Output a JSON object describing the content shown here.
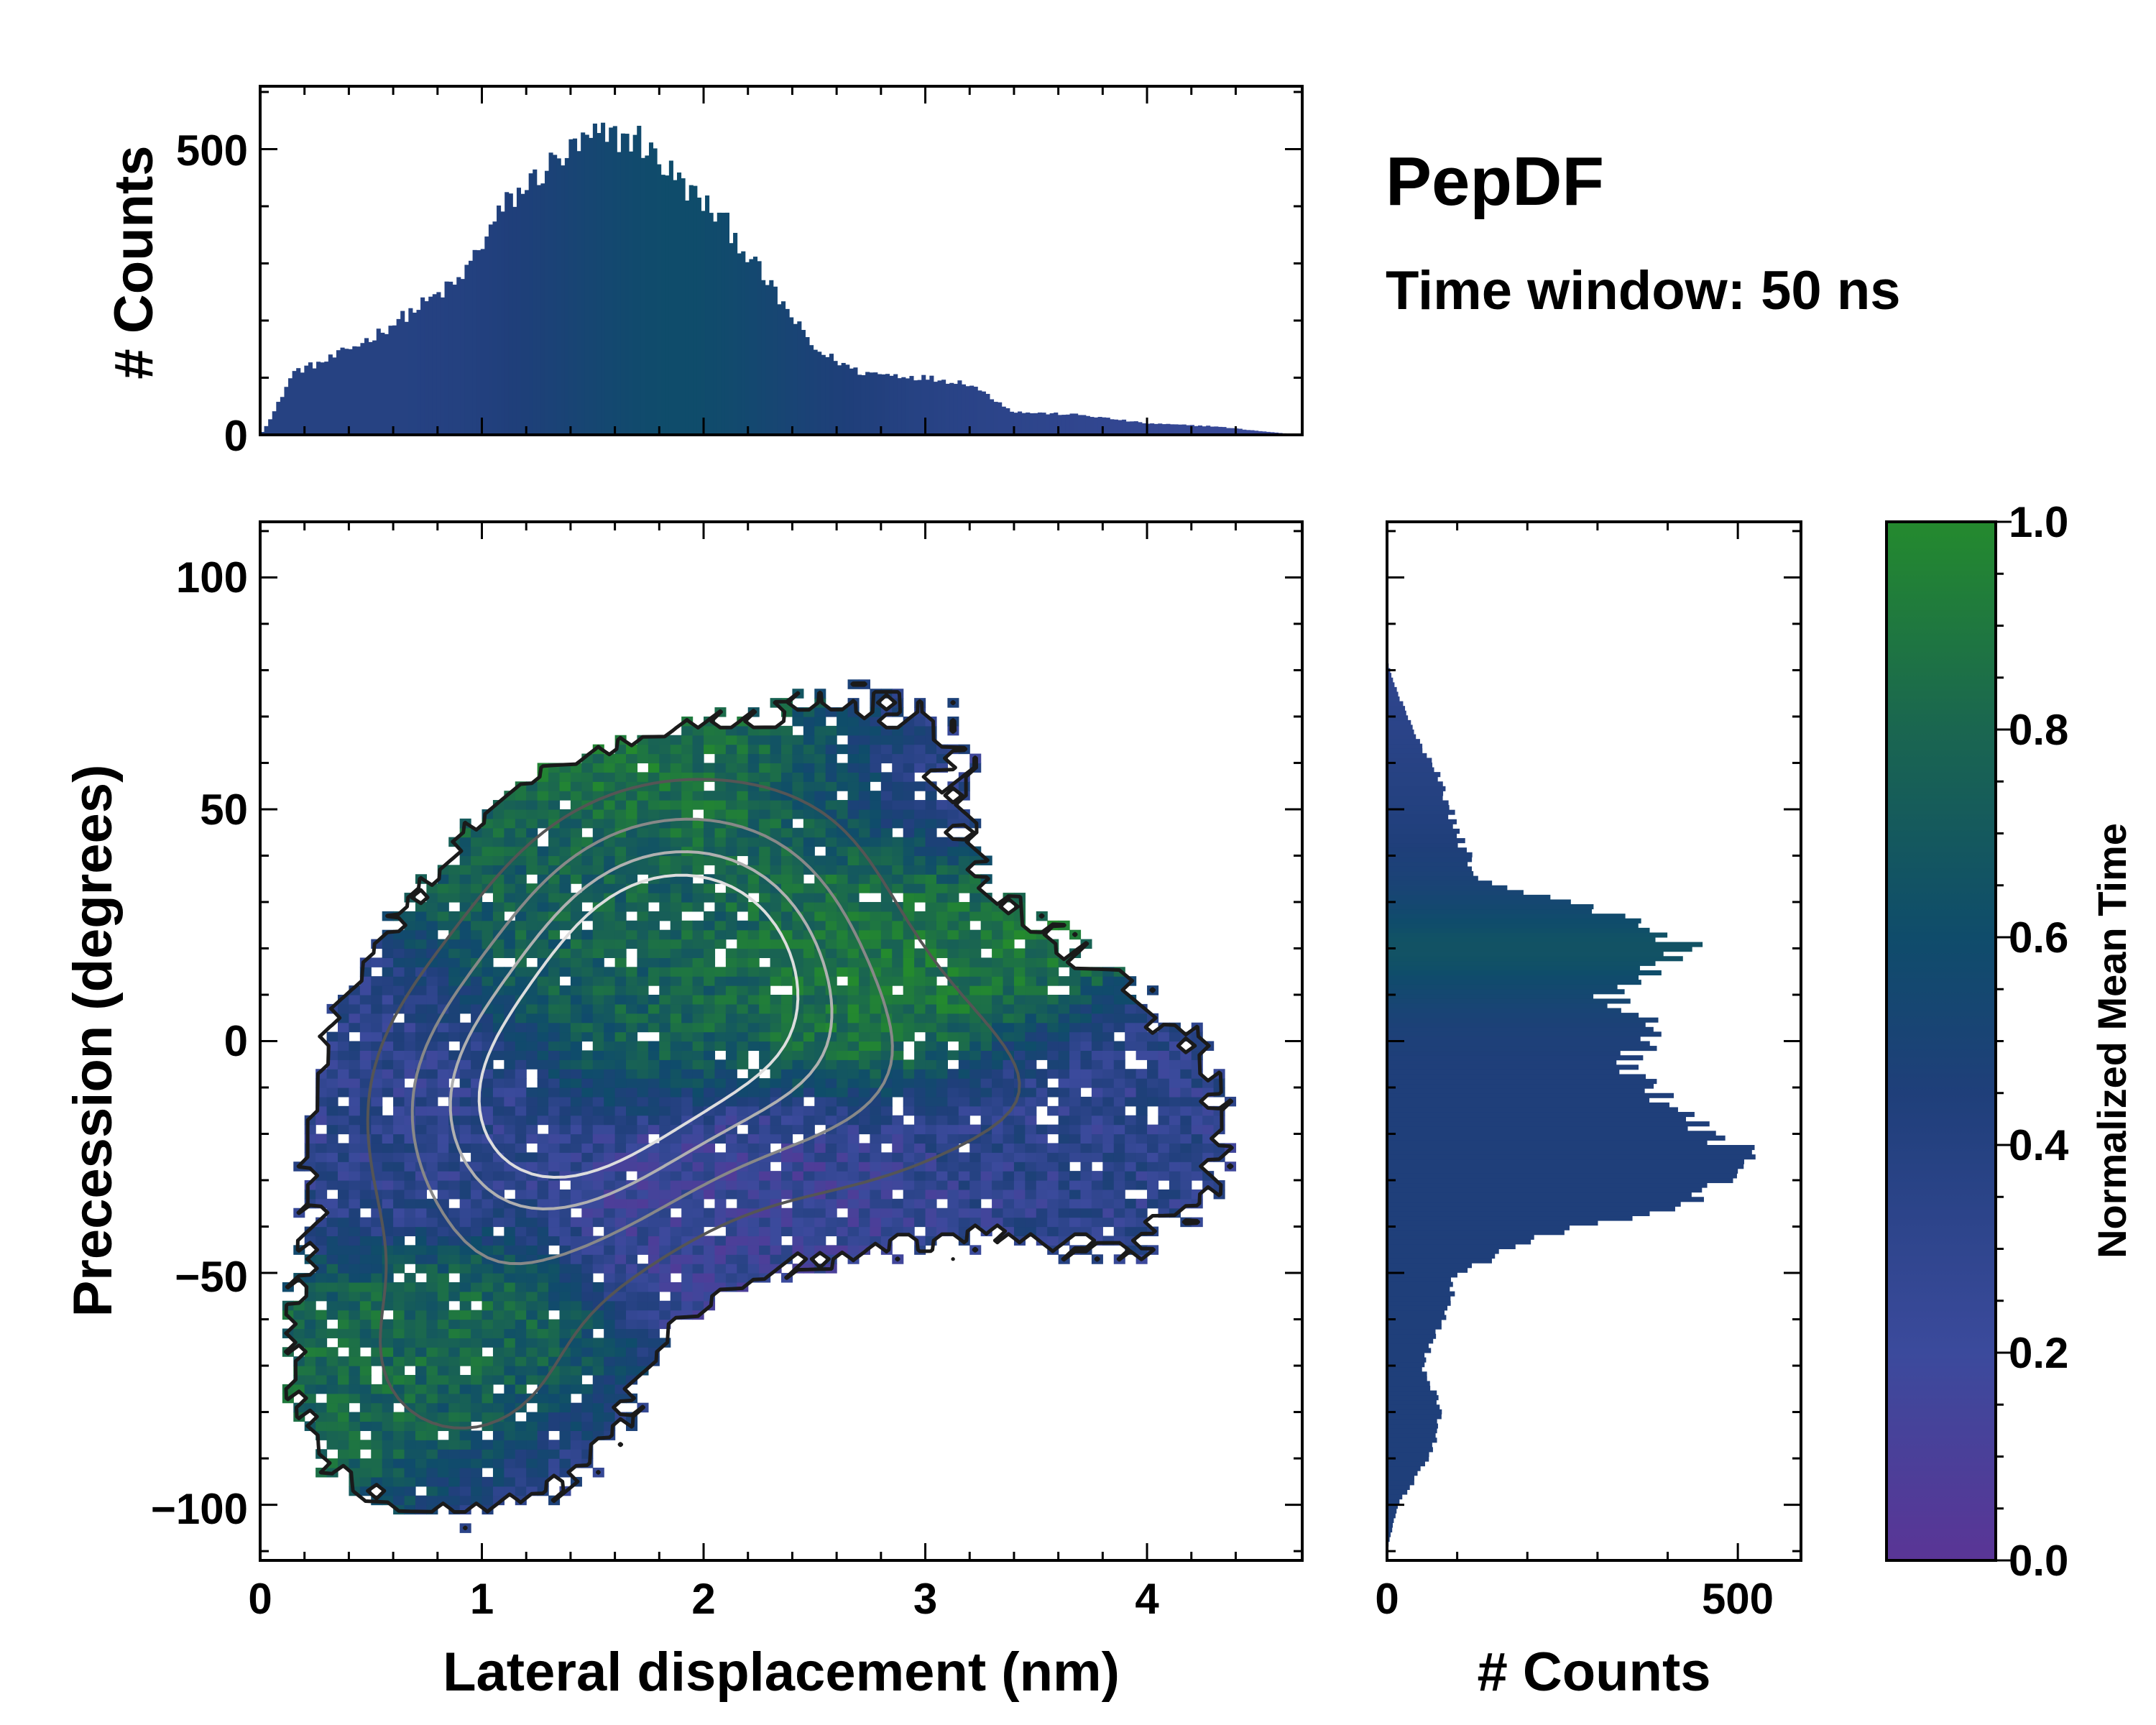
{
  "chart_data": {
    "type": "heatmap",
    "title": "PepDF",
    "subtitle": "Time window: 50 ns",
    "main": {
      "xlabel": "Lateral displacement (nm)",
      "ylabel": "Precession (degrees)",
      "xlim": [
        0,
        4.7
      ],
      "ylim": [
        -112,
        112
      ],
      "xticks": [
        0,
        1,
        2,
        3,
        4
      ],
      "xtick_labels": [
        "0",
        "1",
        "2",
        "3",
        "4"
      ],
      "yticks": [
        -100,
        -50,
        0,
        50,
        100
      ],
      "ytick_labels": [
        "−100",
        "−50",
        "0",
        "50",
        "100"
      ],
      "density_peaks": [
        {
          "x": 1.9,
          "y": 20,
          "weight": 1.0
        },
        {
          "x": 1.3,
          "y": -15,
          "weight": 0.9
        },
        {
          "x": 2.6,
          "y": -10,
          "weight": 0.35
        },
        {
          "x": 0.9,
          "y": -70,
          "weight": 0.35
        },
        {
          "x": 3.9,
          "y": -25,
          "weight": 0.15
        },
        {
          "x": 3.5,
          "y": 0,
          "weight": 0.12
        },
        {
          "x": 2.9,
          "y": 65,
          "weight": 0.12
        }
      ],
      "mean_time_regions": [
        {
          "x": 2.3,
          "y": 65,
          "value": 0.9
        },
        {
          "x": 2.8,
          "y": 20,
          "value": 0.9
        },
        {
          "x": 1.8,
          "y": 20,
          "value": 0.75
        },
        {
          "x": 0.8,
          "y": -75,
          "value": 0.8
        },
        {
          "x": 3.0,
          "y": 65,
          "value": 0.2
        },
        {
          "x": 3.7,
          "y": -25,
          "value": 0.3
        },
        {
          "x": 0.5,
          "y": -15,
          "value": 0.3
        },
        {
          "x": 2.3,
          "y": -40,
          "value": 0.2
        },
        {
          "x": 1.5,
          "y": -100,
          "value": 0.25
        }
      ],
      "contour_levels_grey": [
        "#1a1a1a",
        "#555555",
        "#888888",
        "#b0b0b0",
        "#dddddd"
      ]
    },
    "top_histogram": {
      "ylabel": "# Counts",
      "ylim": [
        0,
        610
      ],
      "yticks": [
        0,
        500
      ],
      "ytick_labels": [
        "0",
        "500"
      ],
      "bins_x_range": [
        0,
        4.7
      ],
      "profile": [
        {
          "x": 0.0,
          "count": 0
        },
        {
          "x": 0.05,
          "count": 30
        },
        {
          "x": 0.15,
          "count": 110
        },
        {
          "x": 0.3,
          "count": 130
        },
        {
          "x": 0.5,
          "count": 170
        },
        {
          "x": 0.7,
          "count": 220
        },
        {
          "x": 0.9,
          "count": 270
        },
        {
          "x": 1.1,
          "count": 400
        },
        {
          "x": 1.3,
          "count": 470
        },
        {
          "x": 1.5,
          "count": 520
        },
        {
          "x": 1.7,
          "count": 520
        },
        {
          "x": 1.9,
          "count": 440
        },
        {
          "x": 2.1,
          "count": 370
        },
        {
          "x": 2.3,
          "count": 260
        },
        {
          "x": 2.5,
          "count": 150
        },
        {
          "x": 2.7,
          "count": 110
        },
        {
          "x": 3.0,
          "count": 100
        },
        {
          "x": 3.2,
          "count": 90
        },
        {
          "x": 3.4,
          "count": 40
        },
        {
          "x": 3.7,
          "count": 35
        },
        {
          "x": 4.0,
          "count": 20
        },
        {
          "x": 4.3,
          "count": 15
        },
        {
          "x": 4.55,
          "count": 5
        },
        {
          "x": 4.7,
          "count": 0
        }
      ]
    },
    "right_histogram": {
      "xlabel": "# Counts",
      "xlim": [
        0,
        590
      ],
      "xticks": [
        0,
        500
      ],
      "xtick_labels": [
        "0",
        "500"
      ],
      "bins_y_range": [
        -112,
        112
      ],
      "profile": [
        {
          "y": -110,
          "count": 0
        },
        {
          "y": -100,
          "count": 15
        },
        {
          "y": -90,
          "count": 60
        },
        {
          "y": -80,
          "count": 80
        },
        {
          "y": -70,
          "count": 50
        },
        {
          "y": -60,
          "count": 80
        },
        {
          "y": -50,
          "count": 100
        },
        {
          "y": -42,
          "count": 220
        },
        {
          "y": -35,
          "count": 420
        },
        {
          "y": -25,
          "count": 520
        },
        {
          "y": -15,
          "count": 420
        },
        {
          "y": -5,
          "count": 340
        },
        {
          "y": 3,
          "count": 390
        },
        {
          "y": 10,
          "count": 310
        },
        {
          "y": 15,
          "count": 370
        },
        {
          "y": 20,
          "count": 440
        },
        {
          "y": 27,
          "count": 330
        },
        {
          "y": 35,
          "count": 130
        },
        {
          "y": 45,
          "count": 100
        },
        {
          "y": 55,
          "count": 80
        },
        {
          "y": 65,
          "count": 45
        },
        {
          "y": 75,
          "count": 15
        },
        {
          "y": 82,
          "count": 0
        }
      ]
    },
    "colorbar": {
      "label": "Normalized Mean Time",
      "range": [
        0.0,
        1.0
      ],
      "ticks": [
        0.0,
        0.2,
        0.4,
        0.6,
        0.8,
        1.0
      ],
      "tick_labels": [
        "0.0",
        "0.2",
        "0.4",
        "0.6",
        "0.8",
        "1.0"
      ],
      "colors": [
        "#5a3596",
        "#3b4a9c",
        "#1f3f7a",
        "#0f4c6b",
        "#1a6650",
        "#248a2e"
      ]
    }
  }
}
